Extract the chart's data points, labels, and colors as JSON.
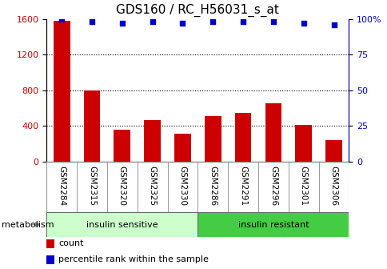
{
  "title": "GDS160 / RC_H56031_s_at",
  "categories": [
    "GSM2284",
    "GSM2315",
    "GSM2320",
    "GSM2325",
    "GSM2330",
    "GSM2286",
    "GSM2291",
    "GSM2296",
    "GSM2301",
    "GSM2306"
  ],
  "bar_values": [
    1580,
    800,
    360,
    460,
    310,
    510,
    540,
    650,
    410,
    240
  ],
  "percentile_values": [
    100,
    98,
    97,
    98,
    97,
    98,
    98,
    98,
    97,
    96
  ],
  "bar_color": "#cc0000",
  "dot_color": "#0000cc",
  "left_ylim": [
    0,
    1600
  ],
  "right_ylim": [
    0,
    100
  ],
  "left_yticks": [
    0,
    400,
    800,
    1200,
    1600
  ],
  "right_yticks": [
    0,
    25,
    50,
    75,
    100
  ],
  "right_yticklabels": [
    "0",
    "25",
    "50",
    "75",
    "100%"
  ],
  "grid_values": [
    400,
    800,
    1200
  ],
  "group1_label": "insulin sensitive",
  "group2_label": "insulin resistant",
  "group1_color": "#ccffcc",
  "group2_color": "#44cc44",
  "group1_count": 5,
  "metabolism_label": "metabolism",
  "legend_count_label": "count",
  "legend_pct_label": "percentile rank within the sample",
  "title_fontsize": 11,
  "tick_label_fontsize": 7.5,
  "axis_tick_fontsize": 8,
  "bar_width": 0.55,
  "background_color": "#ffffff",
  "label_box_color": "#e0e0e0",
  "label_box_border": "#999999"
}
